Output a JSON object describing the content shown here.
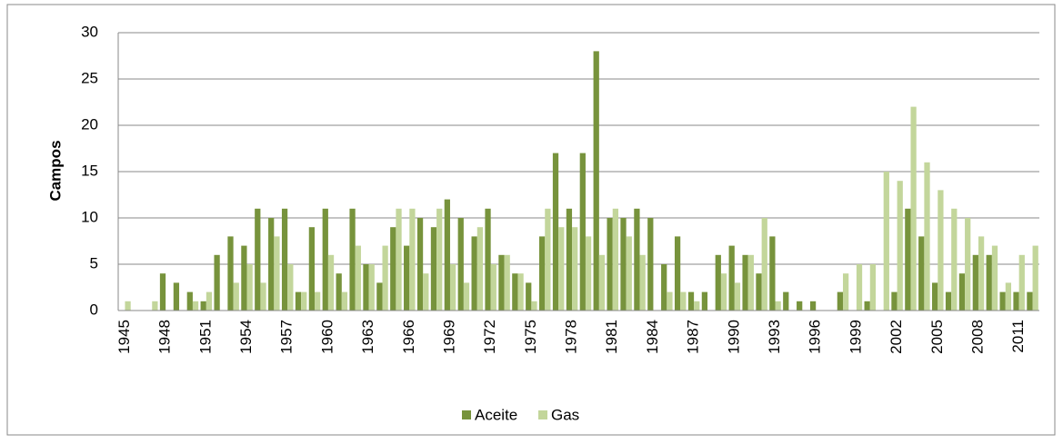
{
  "chart_data": {
    "type": "bar",
    "y_label": "Campos",
    "categories": [
      "1945",
      null,
      null,
      "1948",
      null,
      null,
      "1951",
      null,
      null,
      "1954",
      null,
      null,
      "1957",
      null,
      null,
      "1960",
      null,
      null,
      "1963",
      null,
      null,
      "1966",
      null,
      null,
      "1969",
      null,
      null,
      "1972",
      null,
      null,
      "1975",
      null,
      null,
      "1978",
      null,
      null,
      "1981",
      null,
      null,
      "1984",
      null,
      null,
      "1987",
      null,
      null,
      "1990",
      null,
      null,
      "1993",
      null,
      null,
      "1996",
      null,
      null,
      "1999",
      null,
      null,
      "2002",
      null,
      null,
      "2005",
      null,
      null,
      "2008",
      null,
      null,
      "2011",
      null
    ],
    "series": [
      {
        "name": "Aceite",
        "color": "#77933c",
        "values": [
          0,
          0,
          0,
          4,
          3,
          2,
          1,
          6,
          8,
          7,
          11,
          10,
          11,
          2,
          9,
          11,
          4,
          11,
          5,
          3,
          9,
          7,
          10,
          9,
          12,
          10,
          8,
          11,
          6,
          4,
          3,
          8,
          17,
          11,
          17,
          28,
          10,
          10,
          11,
          10,
          5,
          8,
          2,
          2,
          6,
          7,
          6,
          4,
          8,
          2,
          1,
          1,
          0,
          2,
          0,
          1,
          0,
          2,
          11,
          8,
          3,
          2,
          4,
          6,
          6,
          2,
          2,
          2
        ]
      },
      {
        "name": "Gas",
        "color": "#c3d69b",
        "values": [
          1,
          0,
          1,
          0,
          0,
          1,
          2,
          0,
          3,
          5,
          3,
          8,
          5,
          2,
          2,
          6,
          2,
          7,
          5,
          7,
          11,
          11,
          4,
          11,
          5,
          3,
          9,
          5,
          6,
          4,
          1,
          11,
          9,
          9,
          8,
          6,
          11,
          8,
          6,
          0,
          2,
          2,
          1,
          0,
          4,
          3,
          6,
          10,
          1,
          0,
          0,
          0,
          0,
          4,
          5,
          5,
          15,
          14,
          22,
          16,
          13,
          11,
          10,
          8,
          7,
          3,
          6,
          7
        ]
      }
    ],
    "ylim": [
      0,
      30
    ],
    "yticks": [
      0,
      5,
      10,
      15,
      20,
      25,
      30
    ],
    "grid": true,
    "legend": "bottom"
  }
}
